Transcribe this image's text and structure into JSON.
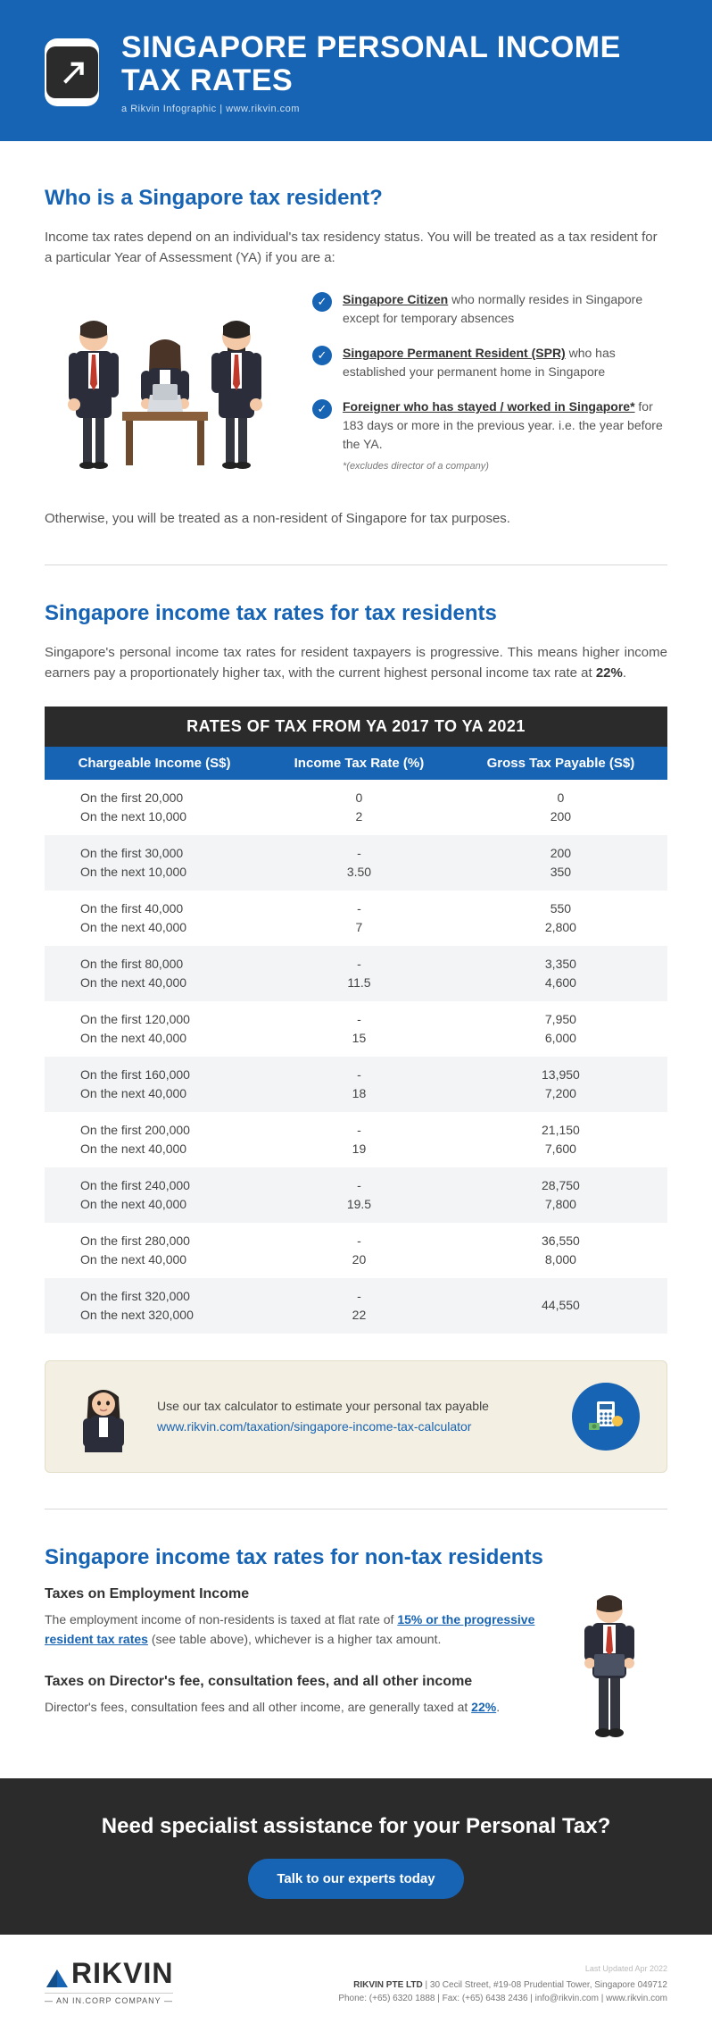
{
  "header": {
    "title": "SINGAPORE PERSONAL INCOME TAX RATES",
    "subtitle": "a Rikvin Infographic   |   www.rikvin.com"
  },
  "section1": {
    "heading": "Who is a Singapore tax resident?",
    "intro": "Income tax rates depend on an individual's tax residency status. You will be treated as a tax resident for a particular Year of Assessment (YA) if you are a:",
    "bullets": [
      {
        "bold": "Singapore Citizen",
        "rest": " who normally resides in Singapore except for temporary absences"
      },
      {
        "bold": "Singapore Permanent Resident (SPR)",
        "rest": " who has established your permanent home in Singapore"
      },
      {
        "bold": "Foreigner who has stayed / worked in Singapore*",
        "rest": " for 183 days or more in the previous year. i.e. the year before the YA."
      }
    ],
    "footnote": "*(excludes director of a company)",
    "outro": "Otherwise, you will be treated as a non-resident of Singapore for tax purposes."
  },
  "section2": {
    "heading": "Singapore income tax rates for tax residents",
    "intro_pre": "Singapore's personal income tax rates for resident taxpayers is progressive. This means higher income earners pay a proportionately higher tax, with the current highest personal income tax rate at ",
    "intro_bold": "22%",
    "intro_post": ".",
    "table_title": "RATES OF TAX FROM YA 2017 TO YA 2021",
    "columns": [
      "Chargeable Income (S$)",
      "Income Tax Rate (%)",
      "Gross Tax Payable (S$)"
    ],
    "rows": [
      {
        "ci_a": "On the first 20,000",
        "ci_b": "On the next 10,000",
        "r_a": "0",
        "r_b": "2",
        "g_a": "0",
        "g_b": "200"
      },
      {
        "ci_a": "On the first 30,000",
        "ci_b": "On the next 10,000",
        "r_a": "-",
        "r_b": "3.50",
        "g_a": "200",
        "g_b": "350"
      },
      {
        "ci_a": "On the first 40,000",
        "ci_b": "On the next 40,000",
        "r_a": "-",
        "r_b": "7",
        "g_a": "550",
        "g_b": "2,800"
      },
      {
        "ci_a": "On the first 80,000",
        "ci_b": "On the next 40,000",
        "r_a": "-",
        "r_b": "11.5",
        "g_a": "3,350",
        "g_b": "4,600"
      },
      {
        "ci_a": "On the first 120,000",
        "ci_b": "On the next 40,000",
        "r_a": "-",
        "r_b": "15",
        "g_a": "7,950",
        "g_b": "6,000"
      },
      {
        "ci_a": "On the first 160,000",
        "ci_b": "On the next 40,000",
        "r_a": "-",
        "r_b": "18",
        "g_a": "13,950",
        "g_b": "7,200"
      },
      {
        "ci_a": "On the first 200,000",
        "ci_b": "On the next 40,000",
        "r_a": "-",
        "r_b": "19",
        "g_a": "21,150",
        "g_b": "7,600"
      },
      {
        "ci_a": "On the first 240,000",
        "ci_b": "On the next 40,000",
        "r_a": "-",
        "r_b": "19.5",
        "g_a": "28,750",
        "g_b": "7,800"
      },
      {
        "ci_a": "On the first 280,000",
        "ci_b": "On the next 40,000",
        "r_a": "-",
        "r_b": "20",
        "g_a": "36,550",
        "g_b": "8,000"
      },
      {
        "ci_a": "On the first 320,000",
        "ci_b": "On the next 320,000",
        "r_a": "-",
        "r_b": "22",
        "g_a": "44,550",
        "g_b": ""
      }
    ],
    "callout_text": "Use our tax calculator to estimate your personal tax payable",
    "callout_link": "www.rikvin.com/taxation/singapore-income-tax-calculator"
  },
  "section3": {
    "heading": "Singapore income tax rates for non-tax residents",
    "sub1_heading": "Taxes on Employment Income",
    "sub1_pre": "The employment income of non-residents is taxed at flat rate of ",
    "sub1_link": "15% or the progressive resident tax rates",
    "sub1_post": " (see table above), whichever is a higher tax amount.",
    "sub2_heading": "Taxes on Director's fee, consultation fees, and all other income",
    "sub2_pre": "Director's fees, consultation fees and all other income, are generally taxed at ",
    "sub2_link": "22%",
    "sub2_post": "."
  },
  "cta": {
    "title": "Need specialist assistance for your Personal Tax?",
    "button": "Talk to our experts today"
  },
  "footer": {
    "logo_name": "RIKVIN",
    "logo_sub": "— AN IN.CORP COMPANY —",
    "updated": "Last Updated Apr 2022",
    "line1": "RIKVIN PTE LTD | 30 Cecil Street, #19-08 Prudential Tower, Singapore 049712",
    "line2": "Phone: (+65) 6320 1888 | Fax: (+65) 6438 2436 | info@rikvin.com | www.rikvin.com"
  },
  "colors": {
    "primary": "#1864b4",
    "dark": "#2b2b2b",
    "callout_bg": "#f3efe2"
  }
}
